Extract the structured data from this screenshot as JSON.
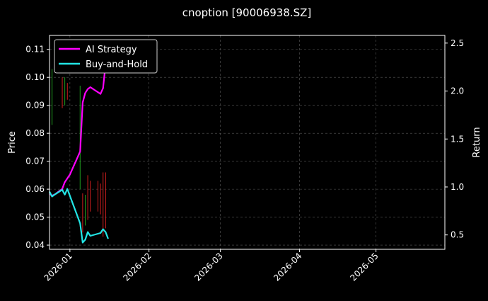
{
  "chart_data": {
    "type": "line",
    "title": "cnoption [90006938.SZ]",
    "xlabel": "",
    "ylabel_left": "Price",
    "ylabel_right": "Return",
    "x_axis": {
      "type": "date",
      "range": [
        "2025-12-24",
        "2026-05-28"
      ],
      "ticks": [
        "2026-01",
        "2026-02",
        "2026-03",
        "2026-04",
        "2026-05"
      ]
    },
    "y_left": {
      "range": [
        0.0385,
        0.115
      ],
      "ticks": [
        0.04,
        0.05,
        0.06,
        0.07,
        0.08,
        0.09,
        0.1,
        0.11
      ]
    },
    "y_right": {
      "range": [
        0.35,
        2.58
      ],
      "ticks": [
        0.5,
        1.0,
        1.5,
        2.0,
        2.5
      ]
    },
    "grid": true,
    "legend_position": "top-left",
    "colors": {
      "background": "#000000",
      "ai": "#ff00ff",
      "bh": "#22e5e5",
      "up": "#1f9e1f",
      "down": "#d11f1f",
      "grid": "#5a5a5a"
    },
    "price_bars": [
      {
        "date": "2025-12-25",
        "high": 0.103,
        "low": 0.083,
        "dir": "up"
      },
      {
        "date": "2025-12-29",
        "high": 0.1,
        "low": 0.089,
        "dir": "down"
      },
      {
        "date": "2025-12-30",
        "high": 0.1,
        "low": 0.09,
        "dir": "up"
      },
      {
        "date": "2025-12-31",
        "high": 0.098,
        "low": 0.092,
        "dir": "down"
      },
      {
        "date": "2026-01-05",
        "high": 0.097,
        "low": 0.06,
        "dir": "up"
      },
      {
        "date": "2026-01-06",
        "high": 0.0585,
        "low": 0.0445,
        "dir": "down"
      },
      {
        "date": "2026-01-07",
        "high": 0.058,
        "low": 0.047,
        "dir": "up"
      },
      {
        "date": "2026-01-08",
        "high": 0.065,
        "low": 0.049,
        "dir": "down"
      },
      {
        "date": "2026-01-09",
        "high": 0.063,
        "low": 0.052,
        "dir": "down"
      },
      {
        "date": "2026-01-12",
        "high": 0.063,
        "low": 0.052,
        "dir": "down"
      },
      {
        "date": "2026-01-13",
        "high": 0.062,
        "low": 0.051,
        "dir": "down"
      },
      {
        "date": "2026-01-14",
        "high": 0.066,
        "low": 0.043,
        "dir": "down"
      },
      {
        "date": "2026-01-15",
        "high": 0.066,
        "low": 0.046,
        "dir": "down"
      }
    ],
    "series": [
      {
        "name": "AI Strategy",
        "points": [
          [
            "2025-12-24",
            0.93
          ],
          [
            "2025-12-25",
            0.91
          ],
          [
            "2025-12-26",
            0.92
          ],
          [
            "2025-12-29",
            0.98
          ],
          [
            "2025-12-30",
            1.05
          ],
          [
            "2026-01-01",
            1.13
          ],
          [
            "2026-01-02",
            1.19
          ],
          [
            "2026-01-05",
            1.37
          ],
          [
            "2026-01-06",
            1.88
          ],
          [
            "2026-01-07",
            1.98
          ],
          [
            "2026-01-08",
            2.02
          ],
          [
            "2026-01-09",
            2.04
          ],
          [
            "2026-01-13",
            1.97
          ],
          [
            "2026-01-14",
            2.03
          ],
          [
            "2026-01-15",
            2.28
          ],
          [
            "2026-01-16",
            2.33
          ]
        ]
      },
      {
        "name": "Buy-and-Hold",
        "points": [
          [
            "2025-12-24",
            0.95
          ],
          [
            "2025-12-25",
            0.9
          ],
          [
            "2025-12-26",
            0.92
          ],
          [
            "2025-12-29",
            0.97
          ],
          [
            "2025-12-30",
            0.92
          ],
          [
            "2025-12-31",
            0.98
          ],
          [
            "2026-01-05",
            0.62
          ],
          [
            "2026-01-06",
            0.42
          ],
          [
            "2026-01-07",
            0.45
          ],
          [
            "2026-01-08",
            0.53
          ],
          [
            "2026-01-09",
            0.49
          ],
          [
            "2026-01-13",
            0.52
          ],
          [
            "2026-01-14",
            0.56
          ],
          [
            "2026-01-15",
            0.53
          ],
          [
            "2026-01-16",
            0.46
          ]
        ]
      }
    ]
  }
}
